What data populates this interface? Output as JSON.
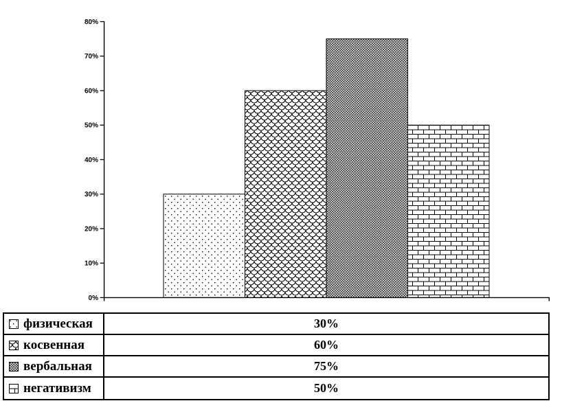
{
  "chart_data": {
    "type": "bar",
    "title": "",
    "xlabel": "",
    "ylabel": "",
    "categories": [
      "физическая",
      "косвенная",
      "вербальная",
      "негативизм"
    ],
    "values": [
      30,
      60,
      75,
      50
    ],
    "ylim": [
      0,
      80
    ],
    "ytick_step": 10,
    "yticks": [
      "80%",
      "70%",
      "60%",
      "50%",
      "40%",
      "30%",
      "20%",
      "10%",
      "0%"
    ],
    "grid": false,
    "bar_patterns": [
      "light-dots",
      "fish-scales",
      "diagonal-crosshatch",
      "bricks"
    ],
    "legend": {
      "position": "bottom",
      "style": "table"
    },
    "colors": {
      "pattern_foreground": "#000000",
      "background": "#ffffff",
      "axis": "#000000"
    }
  },
  "legend_table": {
    "rows": [
      {
        "swatch": "light-dots-swatch",
        "label": "физическая",
        "value": "30%"
      },
      {
        "swatch": "fish-scales-swatch",
        "label": "косвенная",
        "value": "60%"
      },
      {
        "swatch": "diagonal-crosshatch-swatch",
        "label": "вербальная",
        "value": "75%"
      },
      {
        "swatch": "bricks-swatch",
        "label": "негативизм",
        "value": "50%"
      }
    ]
  }
}
